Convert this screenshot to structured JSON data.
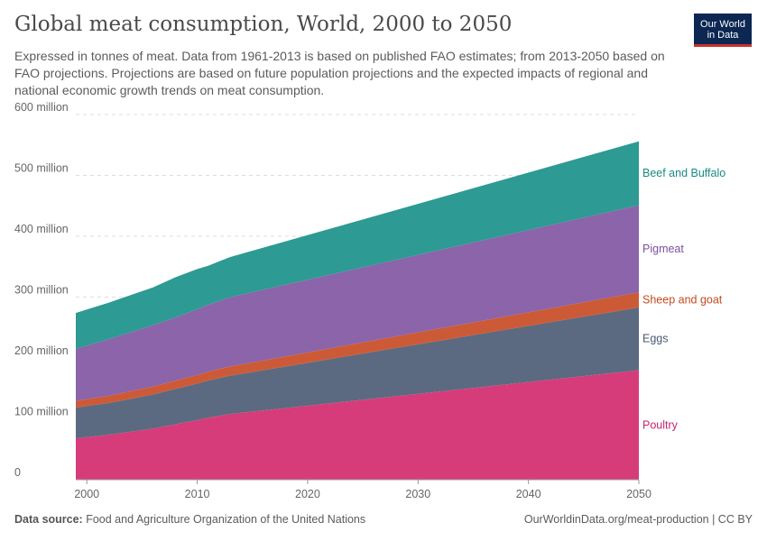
{
  "header": {
    "title": "Global meat consumption, World, 2000 to 2050",
    "subtitle": "Expressed in tonnes of meat. Data from 1961-2013 is based on published FAO estimates; from 2013-2050 based on FAO projections. Projections are based on future population projections and the expected impacts of regional and national economic growth trends on meat consumption."
  },
  "logo": {
    "line1": "Our World",
    "line2": "in Data",
    "bg_color": "#0b2752",
    "accent_color": "#c8332c"
  },
  "footer": {
    "source_label": "Data source:",
    "source_text": "Food and Agriculture Organization of the United Nations",
    "url": "OurWorldinData.org/meat-production | CC BY"
  },
  "chart_data": {
    "type": "area",
    "stacked": true,
    "title": "Global meat consumption, World, 2000 to 2050",
    "xlabel": "",
    "ylabel": "",
    "x": [
      1999,
      2000,
      2002,
      2004,
      2006,
      2008,
      2010,
      2011,
      2012,
      2013,
      2050
    ],
    "xlim": [
      1999,
      2050
    ],
    "ylim": [
      0,
      600000000
    ],
    "x_ticks": [
      2000,
      2010,
      2020,
      2030,
      2040,
      2050
    ],
    "y_ticks": [
      {
        "value": 0,
        "label": "0"
      },
      {
        "value": 100000000,
        "label": "100 million"
      },
      {
        "value": 200000000,
        "label": "200 million"
      },
      {
        "value": 300000000,
        "label": "300 million"
      },
      {
        "value": 400000000,
        "label": "400 million"
      },
      {
        "value": 500000000,
        "label": "500 million"
      },
      {
        "value": 600000000,
        "label": "600 million"
      }
    ],
    "grid": "horizontal-dashed",
    "legend": "right-inline",
    "series": [
      {
        "name": "Poultry",
        "color": "#d73c7a",
        "values": [
          68000000,
          70000000,
          74000000,
          79000000,
          84000000,
          91000000,
          98000000,
          102000000,
          105000000,
          108000000,
          180000000
        ]
      },
      {
        "name": "Eggs",
        "color": "#5b6a80",
        "values": [
          50000000,
          51000000,
          52000000,
          54000000,
          56000000,
          58000000,
          60000000,
          61000000,
          62000000,
          63000000,
          103000000
        ]
      },
      {
        "name": "Sheep and goat",
        "color": "#cd5a36",
        "values": [
          11000000,
          11500000,
          12000000,
          12500000,
          13000000,
          13500000,
          14000000,
          14500000,
          15000000,
          15000000,
          25000000
        ]
      },
      {
        "name": "Pigmeat",
        "color": "#8b64aa",
        "values": [
          86000000,
          88000000,
          93000000,
          97000000,
          101000000,
          104000000,
          108000000,
          110000000,
          112000000,
          114000000,
          143000000
        ]
      },
      {
        "name": "Beef and Buffalo",
        "color": "#2d9a93",
        "values": [
          59000000,
          59000000,
          60000000,
          61000000,
          62000000,
          66000000,
          66000000,
          64000000,
          65000000,
          66000000,
          105000000
        ]
      }
    ]
  }
}
